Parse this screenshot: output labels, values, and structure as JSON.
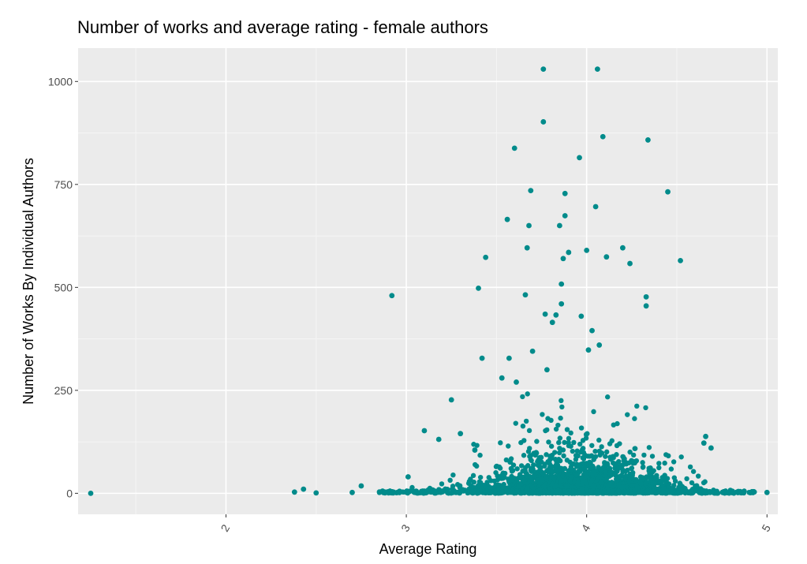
{
  "chart_data": {
    "type": "scatter",
    "title": "Number of works and average rating - female authors",
    "xlabel": "Average Rating",
    "ylabel": "Number of Works By Individual Authors",
    "xlim": [
      1.18,
      5.06
    ],
    "ylim": [
      -51,
      1081
    ],
    "x_ticks": [
      2,
      3,
      4,
      5
    ],
    "x_tick_labels": [
      "2",
      "3",
      "4",
      "5"
    ],
    "y_ticks": [
      0,
      250,
      500,
      750,
      1000
    ],
    "y_tick_labels": [
      "0",
      "250",
      "500",
      "750",
      "1000"
    ],
    "grid": true,
    "background": "#ebebeb",
    "point_color": "#008b8b",
    "series": [
      {
        "x": [
          1.25,
          2.38,
          2.43,
          2.5,
          2.7,
          2.75,
          2.92,
          3.01,
          3.1,
          3.18,
          3.25,
          3.3,
          3.38,
          3.4,
          3.42,
          3.44,
          3.53,
          3.56,
          3.57,
          3.6,
          3.61,
          3.66,
          3.67,
          3.68,
          3.69,
          3.7,
          3.76,
          3.76,
          3.77,
          3.78,
          3.81,
          3.83,
          3.85,
          3.86,
          3.86,
          3.87,
          3.88,
          3.88,
          3.9,
          3.96,
          3.97,
          4.0,
          4.01,
          4.03,
          4.05,
          4.06,
          4.07,
          4.09,
          4.11,
          4.2,
          4.24,
          4.33,
          4.33,
          4.34,
          4.45,
          4.52,
          4.65,
          4.66,
          4.69,
          5.0
        ],
        "y": [
          0,
          3,
          10,
          1,
          2,
          18,
          480,
          40,
          152,
          131,
          227,
          145,
          105,
          498,
          328,
          573,
          280,
          665,
          328,
          838,
          270,
          482,
          596,
          650,
          735,
          345,
          1030,
          902,
          435,
          300,
          415,
          433,
          650,
          460,
          508,
          570,
          728,
          674,
          585,
          815,
          430,
          590,
          348,
          395,
          696,
          1030,
          360,
          866,
          574,
          596,
          558,
          477,
          455,
          858,
          732,
          565,
          122,
          138,
          110,
          2
        ],
        "cluster_center": [
          3.95,
          40
        ]
      }
    ]
  }
}
